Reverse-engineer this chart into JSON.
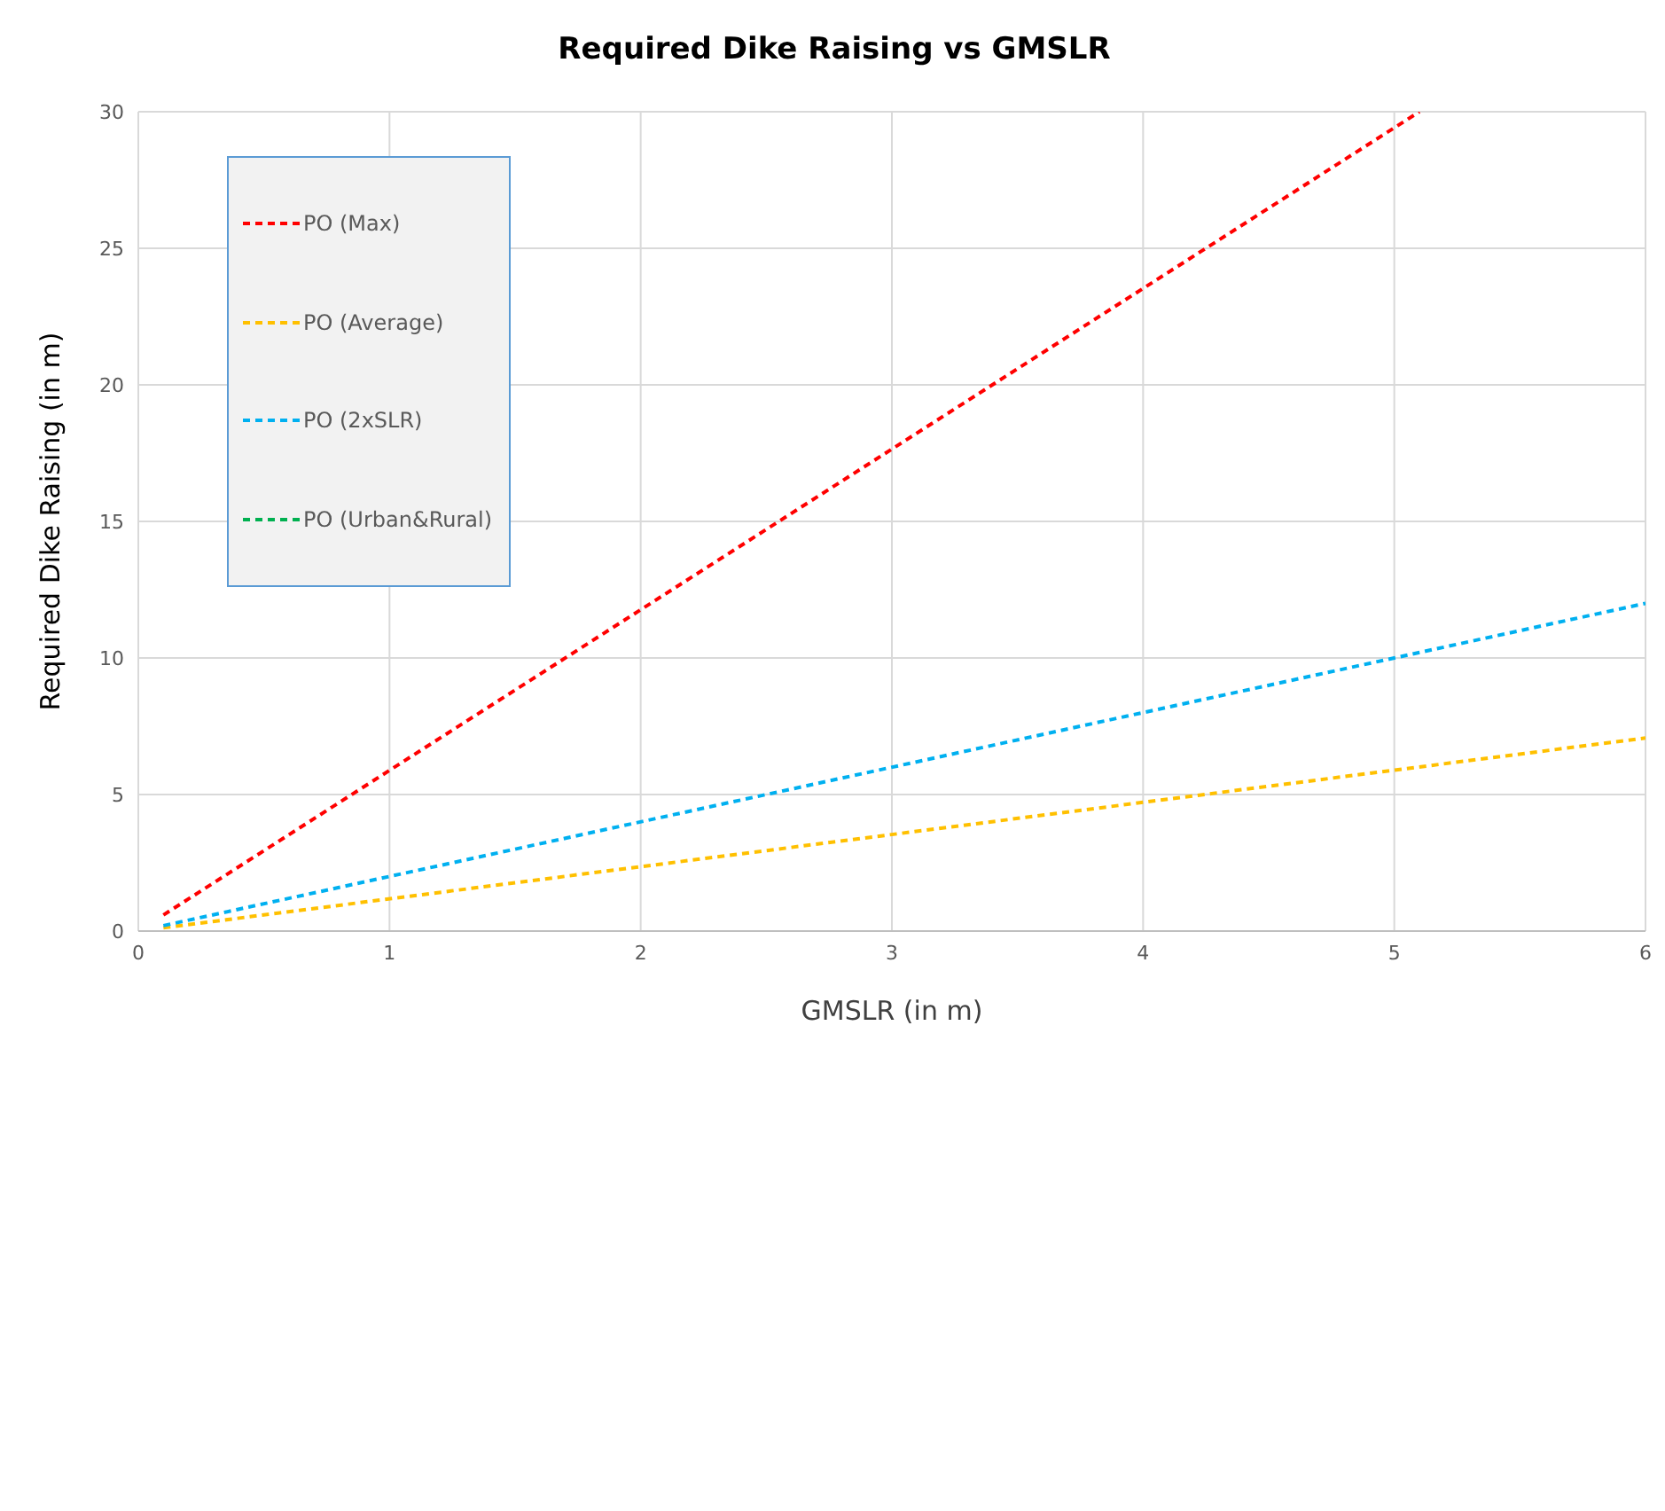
{
  "chart_data": {
    "type": "line",
    "title": "Required Dike Raising vs GMSLR",
    "xlabel": "GMSLR (in m)",
    "ylabel": "Required Dike Raising (in m)",
    "series": [
      {
        "name": "PO (Max)",
        "color": "#ff0000",
        "x": [
          0.1,
          5.1
        ],
        "values": [
          0.59,
          30
        ]
      },
      {
        "name": "PO (Average)",
        "color": "#ffc000",
        "x": [
          0.1,
          6
        ],
        "values": [
          0.12,
          7.07
        ]
      },
      {
        "name": "PO (2xSLR)",
        "color": "#00b0f0",
        "x": [
          0.1,
          6
        ],
        "values": [
          0.2,
          12
        ]
      },
      {
        "name": "PO (Urban&Rural)",
        "color": "#00b050"
      }
    ],
    "xlim": [
      0,
      6
    ],
    "xticks": [
      0,
      1,
      2,
      3,
      4,
      5,
      6
    ],
    "ylim": [
      0,
      30
    ],
    "yticks": [
      0,
      5,
      10,
      15,
      20,
      25,
      30
    ],
    "grid": true,
    "legend": "top left",
    "line_style": "dashed",
    "marker": "none"
  }
}
